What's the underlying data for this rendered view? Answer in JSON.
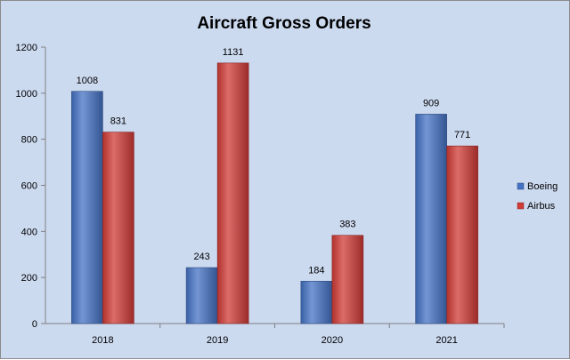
{
  "chart_data": {
    "type": "bar",
    "title": "Aircraft Gross Orders",
    "categories": [
      "2018",
      "2019",
      "2020",
      "2021"
    ],
    "series": [
      {
        "name": "Boeing",
        "values": [
          1008,
          243,
          184,
          909
        ],
        "color": "#4472c4"
      },
      {
        "name": "Airbus",
        "values": [
          831,
          1131,
          383,
          771
        ],
        "color": "#d03b36"
      }
    ],
    "ylim": [
      0,
      1200
    ],
    "yticks": [
      0,
      200,
      400,
      600,
      800,
      1000,
      1200
    ],
    "grid": false,
    "legend_position": "right"
  }
}
